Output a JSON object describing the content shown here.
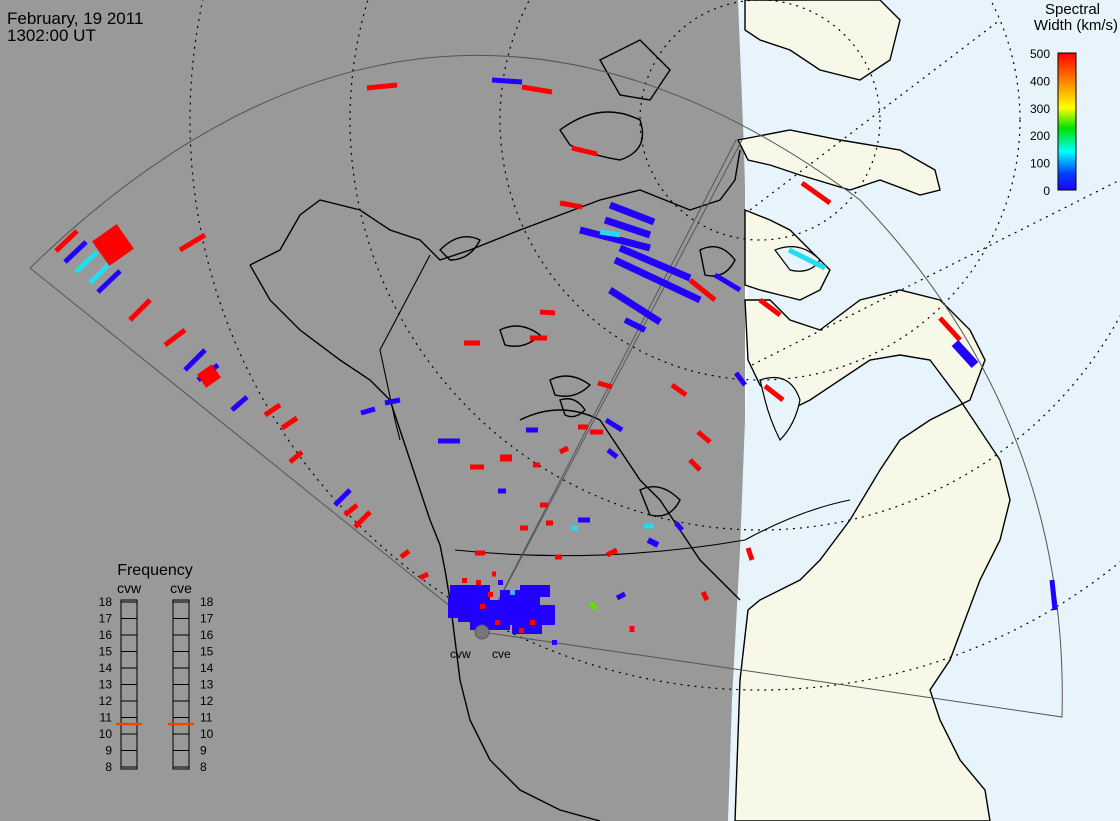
{
  "header": {
    "date": "February, 19 2011",
    "time": "1302:00 UT"
  },
  "colorbar": {
    "title_line1": "Spectral",
    "title_line2": "Width (km/s)",
    "ticks": [
      "500",
      "400",
      "300",
      "200",
      "100",
      "0"
    ],
    "colors": [
      "#ff0000",
      "#ff8000",
      "#ffff00",
      "#00e000",
      "#00ffff",
      "#0040ff",
      "#2000ff"
    ]
  },
  "frequency_panel": {
    "title": "Frequency",
    "left_label": "cvw",
    "right_label": "cve",
    "ticks": [
      "18",
      "17",
      "16",
      "15",
      "14",
      "13",
      "12",
      "11",
      "10",
      "9",
      "8"
    ],
    "cvw_value": 10.6,
    "cve_value": 10.6,
    "marker_color": "#ff4000"
  },
  "radars": {
    "west_label": "cvw",
    "east_label": "cve"
  },
  "colors": {
    "night": "#999999",
    "day_land": "#f8f8e8",
    "day_water": "#e8f4fc",
    "low_width": "#2200ff",
    "high_width": "#ff0000",
    "mid_width": "#22ddee"
  }
}
